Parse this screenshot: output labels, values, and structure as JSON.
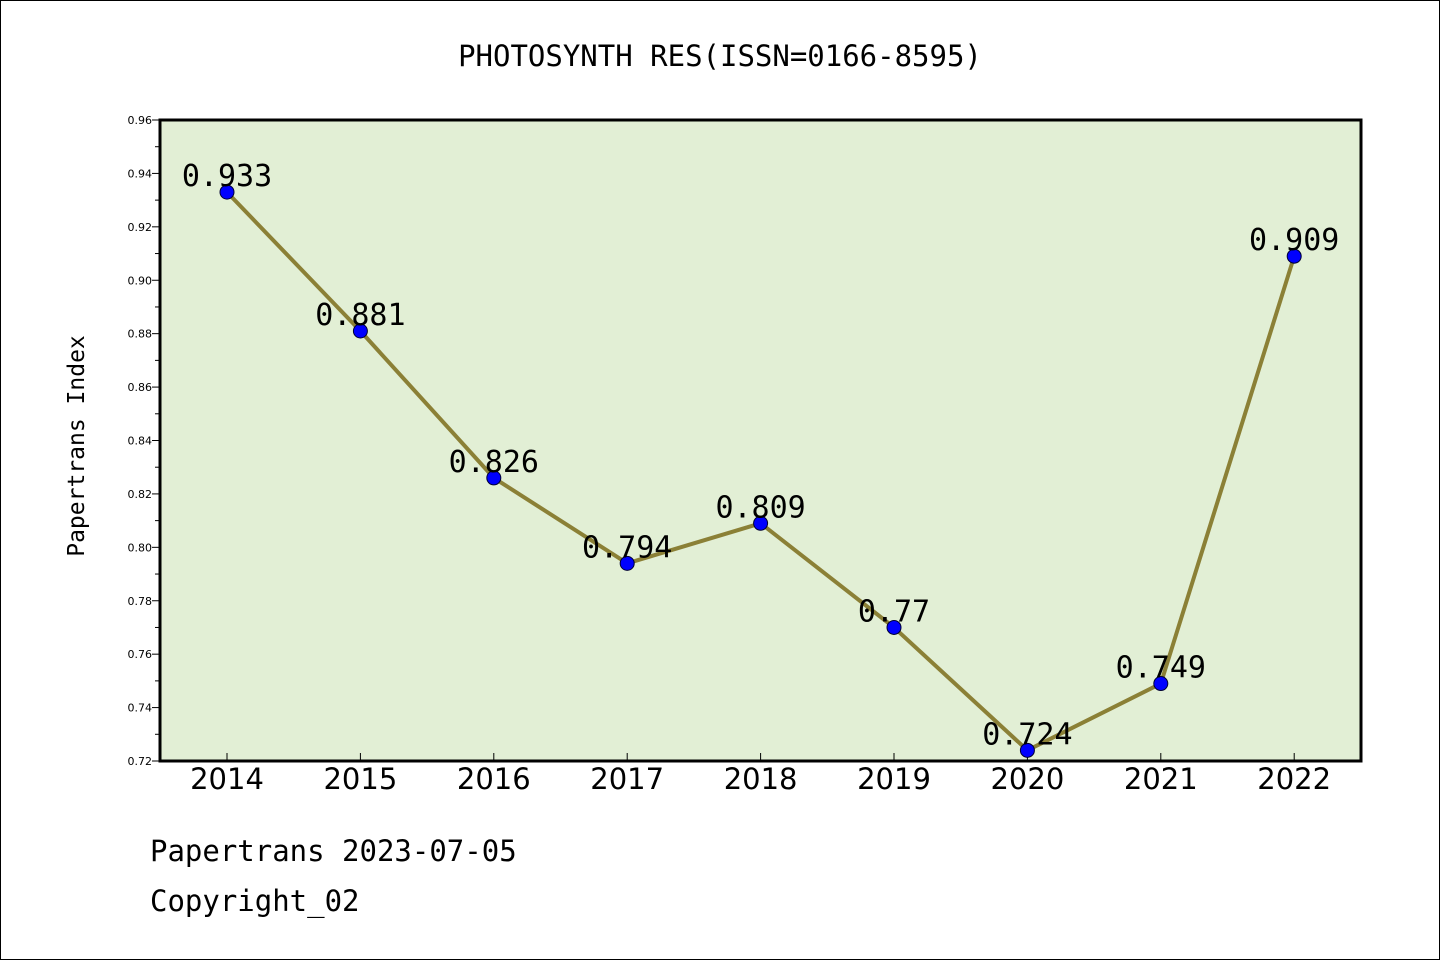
{
  "chart_data": {
    "type": "line",
    "title": "PHOTOSYNTH RES(ISSN=0166-8595)",
    "xlabel": "",
    "ylabel": "Papertrans Index",
    "categories": [
      "2014",
      "2015",
      "2016",
      "2017",
      "2018",
      "2019",
      "2020",
      "2021",
      "2022"
    ],
    "series": [
      {
        "values": [
          0.933,
          0.881,
          0.826,
          0.794,
          0.809,
          0.77,
          0.724,
          0.749,
          0.909
        ],
        "labels": [
          "0.933",
          "0.881",
          "0.826",
          "0.794",
          "0.809",
          "0.77",
          "0.724",
          "0.749",
          "0.909"
        ]
      }
    ],
    "ylim": [
      0.72,
      0.96
    ],
    "yticks": [
      "0.72",
      "0.74",
      "0.76",
      "0.78",
      "0.80",
      "0.82",
      "0.84",
      "0.86",
      "0.88",
      "0.90",
      "0.92",
      "0.94",
      "0.96"
    ],
    "colors": {
      "plot_background": "#e2efd5",
      "line": "#8b8036",
      "marker": "#0000ff"
    },
    "grid": false
  },
  "footer": {
    "source": "Papertrans 2023-07-05",
    "copyright": "Copyright_02"
  }
}
